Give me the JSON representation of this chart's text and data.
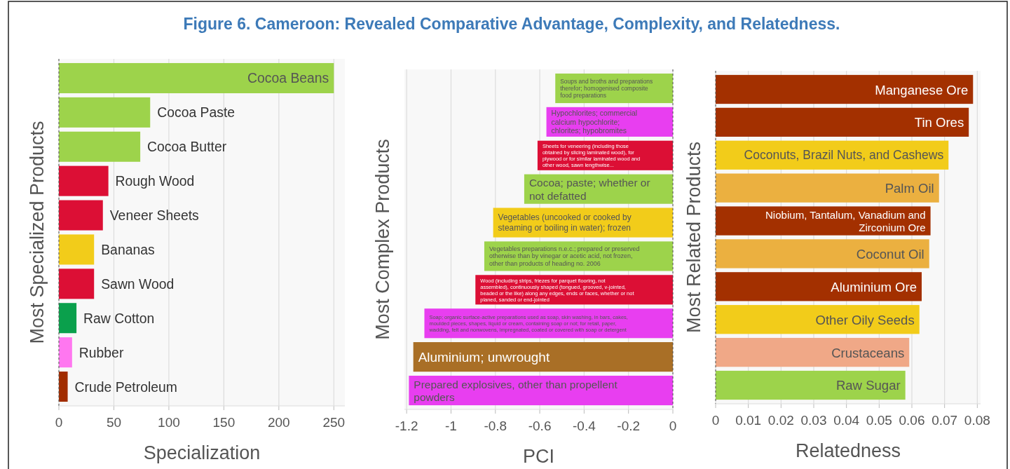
{
  "chart_data": [
    {
      "type": "bar",
      "orientation": "horizontal",
      "title": "Figure 6. Cameroon: Revealed Comparative Advantage, Complexity, and Relatedness.",
      "xlabel": "Specialization",
      "ylabel": "Most Specialized Products",
      "grid": "x",
      "categories": [
        "Cocoa Beans",
        "Cocoa Paste",
        "Cocoa Butter",
        "Rough Wood",
        "Veneer Sheets",
        "Bananas",
        "Sawn Wood",
        "Raw Cotton",
        "Rubber",
        "Crude Petroleum"
      ],
      "values": [
        250,
        83,
        74,
        45,
        40,
        32,
        32,
        16,
        12,
        8
      ],
      "colors": [
        "#9dd34b",
        "#9dd34b",
        "#9dd34b",
        "#dc0f35",
        "#dc0f35",
        "#f2cc1a",
        "#dc0f35",
        "#0aa04c",
        "#ff77f0",
        "#a12d00"
      ],
      "xlim": [
        0,
        260
      ],
      "xticks": [
        0,
        50,
        100,
        150,
        200,
        250
      ]
    },
    {
      "type": "bar",
      "orientation": "horizontal",
      "xlabel": "PCI",
      "ylabel": "Most Complex Products",
      "grid": "x",
      "categories": [
        "Soups and broths and preparations therefor; homogenised composite food preparations",
        "Hypochlorites; commercial calcium hypochlorite; chlorites; hypobromites",
        "Sheets for veneering (including those obtained by slicing laminated wood), for plywood or for similar laminated wood and other wood, sawn lengthwise...",
        "Cocoa; paste; whether or not defatted",
        "Vegetables (uncooked or cooked by steaming or boiling in water); frozen",
        "Vegetables preparations n.e.c.; prepared or preserved otherwise than by vinegar or acetic acid, not frozen, other than products of heading no. 2006",
        "Wood (including strips, friezes for parquet flooring, not assembled), continuously shaped (tongued, grooved, v-jointed, beaded or the like) along any edges, ends or faces, whether or not planed, sanded or end-jointed",
        "Soap; organic surface-active preparations used as soap, skin washing, in bars, cakes, moulded pieces, shapes, liquid or cream, containing soap or not; for retail, paper, wadding, felt and nonwovens, impregnated, coated or covered with soap or detergent",
        "Aluminium; unwrought",
        "Prepared explosives, other than propellent powders"
      ],
      "values": [
        -0.53,
        -0.57,
        -0.61,
        -0.67,
        -0.81,
        -0.85,
        -0.89,
        -1.12,
        -1.17,
        -1.19
      ],
      "colors": [
        "#9dd34b",
        "#e83ef0",
        "#dc0f35",
        "#9dd34b",
        "#f2cc1a",
        "#9dd34b",
        "#dc0f35",
        "#e83ef0",
        "#a96f26",
        "#e83ef0"
      ],
      "xlim": [
        -1.21,
        0
      ],
      "xticks": [
        -1.2,
        -1,
        -0.8,
        -0.6,
        -0.4,
        -0.2,
        0
      ]
    },
    {
      "type": "bar",
      "orientation": "horizontal",
      "xlabel": "Relatedness",
      "ylabel": "Most Related Products",
      "grid": "x",
      "categories": [
        "Manganese Ore",
        "Tin Ores",
        "Coconuts, Brazil Nuts, and Cashews",
        "Palm Oil",
        "Niobium, Tantalum, Vanadium and Zirconium Ore",
        "Coconut Oil",
        "Aluminium Ore",
        "Other Oily Seeds",
        "Crustaceans",
        "Raw Sugar"
      ],
      "values": [
        0.0787,
        0.0774,
        0.0712,
        0.0683,
        0.0657,
        0.0653,
        0.063,
        0.0623,
        0.0592,
        0.058
      ],
      "colors": [
        "#a33000",
        "#a33000",
        "#f2cc1a",
        "#ebb040",
        "#a33000",
        "#ebb040",
        "#a33000",
        "#f2cc1a",
        "#f0a887",
        "#9dd34b"
      ],
      "xlim": [
        0,
        0.081
      ],
      "xticks": [
        0,
        0.01,
        0.02,
        0.03,
        0.04,
        0.05,
        0.06,
        0.07,
        0.08
      ]
    }
  ]
}
